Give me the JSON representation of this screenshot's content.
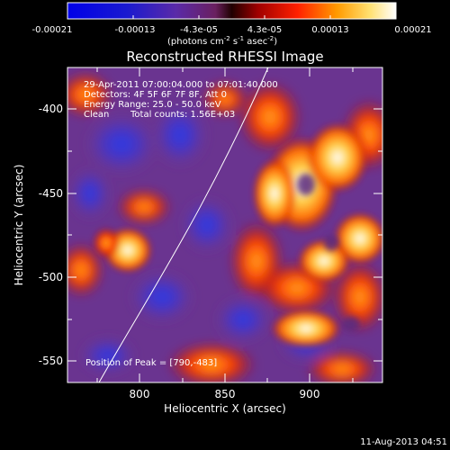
{
  "colorbar": {
    "ticks": [
      "-0.00021",
      "-0.00013",
      "-4.3e-05",
      "4.3e-05",
      "0.00013",
      "0.00021"
    ],
    "unit_text": "(photons cm",
    "unit_sup1": "-2",
    "unit_mid": " s",
    "unit_sup2": "-1",
    "unit_mid2": " asec",
    "unit_sup3": "-2",
    "unit_end": ")"
  },
  "title": "Reconstructed RHESSI Image",
  "info": {
    "line1": "29-Apr-2011 07:00:04.000 to 07:01:40.000",
    "line2": "Detectors: 4F 5F 6F 7F 8F, Att 0",
    "line3": "Energy Range: 25.0 - 50.0 keV",
    "line4_a": "Clean",
    "line4_b": "Total counts: 1.56E+03"
  },
  "peak_label": "Position of Peak = [790,-483]",
  "axes": {
    "xlabel": "Heliocentric X (arcsec)",
    "ylabel": "Heliocentric Y (arcsec)",
    "xticks": [
      "800",
      "850",
      "900"
    ],
    "yticks": [
      "-400",
      "-450",
      "-500",
      "-550"
    ]
  },
  "footer_date": "11-Aug-2013 04:51",
  "colors": {
    "background": "#000000",
    "colormap": [
      "#0000ff",
      "#5a2da8",
      "#7d3a8a",
      "#a00000",
      "#ff3000",
      "#ff9000",
      "#ffd24a",
      "#ffffff"
    ]
  }
}
